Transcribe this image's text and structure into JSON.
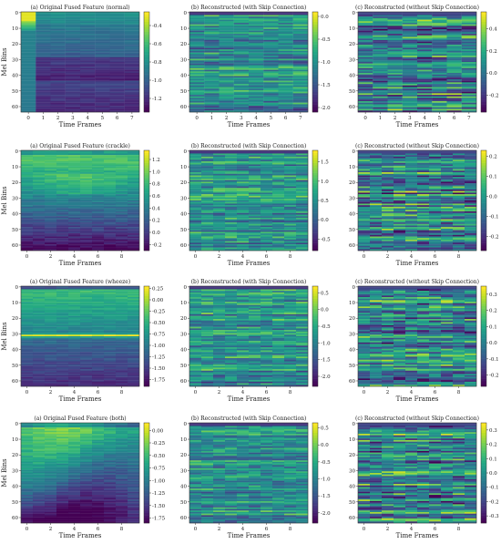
{
  "chart_data": [
    {
      "type": "heatmap",
      "title": "(a) Original Fused Feature (normal)",
      "xlabel": "Time Frames",
      "ylabel": "Mel Bins",
      "xticks": [
        "0",
        "1",
        "2",
        "3",
        "4",
        "5",
        "6",
        "7"
      ],
      "yticks": [
        "0",
        "10",
        "20",
        "30",
        "40",
        "50",
        "60"
      ],
      "cbar_ticks": [
        "-0.4",
        "-0.6",
        "-0.8",
        "-1.0",
        "-1.2"
      ],
      "vmin": -1.35,
      "vmax": -0.25,
      "n_cols": 8,
      "n_rows": 64,
      "pattern": "orig-normal"
    },
    {
      "type": "heatmap",
      "title": "(b) Reconstructed (with Skip Connection)",
      "xlabel": "Time Frames",
      "ylabel": "",
      "xticks": [
        "0",
        "1",
        "2",
        "3",
        "4",
        "5",
        "6",
        "7"
      ],
      "yticks": [
        "0",
        "10",
        "20",
        "30",
        "40",
        "50",
        "60"
      ],
      "cbar_ticks": [
        "0.0",
        "-0.5",
        "-1.0",
        "-1.5",
        "-2.0"
      ],
      "vmin": -2.1,
      "vmax": 0.1,
      "n_cols": 8,
      "n_rows": 64,
      "pattern": "recon-skip"
    },
    {
      "type": "heatmap",
      "title": "(c) Reconstructed (without Skip Connection)",
      "xlabel": "Time Frames",
      "ylabel": "",
      "xticks": [
        "0",
        "1",
        "2",
        "3",
        "4",
        "5",
        "6",
        "7"
      ],
      "yticks": [
        "0",
        "10",
        "20",
        "30",
        "40",
        "50",
        "60"
      ],
      "cbar_ticks": [
        "0.4",
        "0.2",
        "0.0",
        "-0.2"
      ],
      "vmin": -0.35,
      "vmax": 0.55,
      "n_cols": 8,
      "n_rows": 64,
      "pattern": "recon-noskip"
    },
    {
      "type": "heatmap",
      "title": "(a) Original Fused Feature (crackle)",
      "xlabel": "Time Frames",
      "ylabel": "Mel Bins",
      "xticks": [
        "0",
        "2",
        "4",
        "6",
        "8"
      ],
      "yticks": [
        "0",
        "10",
        "20",
        "30",
        "40",
        "50",
        "60"
      ],
      "cbar_ticks": [
        "1.2",
        "1.0",
        "0.8",
        "0.6",
        "0.4",
        "0.2",
        "0.0",
        "-0.2"
      ],
      "vmin": -0.3,
      "vmax": 1.35,
      "n_cols": 10,
      "n_rows": 64,
      "pattern": "orig-crackle"
    },
    {
      "type": "heatmap",
      "title": "(b) Reconstructed (with Skip Connection)",
      "xlabel": "Time Frames",
      "ylabel": "",
      "xticks": [
        "0",
        "2",
        "4",
        "6",
        "8"
      ],
      "yticks": [
        "0",
        "10",
        "20",
        "30",
        "40",
        "50",
        "60"
      ],
      "cbar_ticks": [
        "1.5",
        "1.0",
        "0.5",
        "0.0",
        "-0.5"
      ],
      "vmin": -0.8,
      "vmax": 1.8,
      "n_cols": 10,
      "n_rows": 64,
      "pattern": "recon-skip"
    },
    {
      "type": "heatmap",
      "title": "(c) Reconstructed (without Skip Connection)",
      "xlabel": "Time Frames",
      "ylabel": "",
      "xticks": [
        "0",
        "2",
        "4",
        "6",
        "8"
      ],
      "yticks": [
        "0",
        "10",
        "20",
        "30",
        "40",
        "50",
        "60"
      ],
      "cbar_ticks": [
        "0.2",
        "0.1",
        "0.0",
        "-0.1",
        "-0.2"
      ],
      "vmin": -0.27,
      "vmax": 0.23,
      "n_cols": 10,
      "n_rows": 64,
      "pattern": "recon-noskip"
    },
    {
      "type": "heatmap",
      "title": "(a) Original Fused Feature (wheeze)",
      "xlabel": "Time Frames",
      "ylabel": "Mel Bins",
      "xticks": [
        "0",
        "2",
        "4",
        "6",
        "8"
      ],
      "yticks": [
        "0",
        "10",
        "20",
        "30",
        "40",
        "50",
        "60"
      ],
      "cbar_ticks": [
        "0.25",
        "0.00",
        "-0.25",
        "-0.50",
        "-0.75",
        "-1.00",
        "-1.25",
        "-1.50",
        "-1.75"
      ],
      "vmin": -1.9,
      "vmax": 0.3,
      "n_cols": 10,
      "n_rows": 64,
      "pattern": "orig-wheeze"
    },
    {
      "type": "heatmap",
      "title": "(b) Reconstructed (with Skip Connection)",
      "xlabel": "Time Frames",
      "ylabel": "",
      "xticks": [
        "0",
        "2",
        "4",
        "6",
        "8"
      ],
      "yticks": [
        "0",
        "10",
        "20",
        "30",
        "40",
        "50",
        "60"
      ],
      "cbar_ticks": [
        "0.5",
        "0.0",
        "-0.5",
        "-1.0",
        "-1.5",
        "-2.0"
      ],
      "vmin": -2.3,
      "vmax": 0.7,
      "n_cols": 10,
      "n_rows": 64,
      "pattern": "recon-skip"
    },
    {
      "type": "heatmap",
      "title": "(c) Reconstructed (without Skip Connection)",
      "xlabel": "Time Frames",
      "ylabel": "",
      "xticks": [
        "0",
        "2",
        "4",
        "6",
        "8"
      ],
      "yticks": [
        "0",
        "10",
        "20",
        "30",
        "40",
        "50",
        "60"
      ],
      "cbar_ticks": [
        "0.3",
        "0.2",
        "0.1",
        "0.0",
        "-0.1",
        "-0.2"
      ],
      "vmin": -0.27,
      "vmax": 0.35,
      "n_cols": 10,
      "n_rows": 64,
      "pattern": "recon-noskip"
    },
    {
      "type": "heatmap",
      "title": "(a) Original Fused Feature (both)",
      "xlabel": "Time Frames",
      "ylabel": "Mel Bins",
      "xticks": [
        "0",
        "2",
        "4",
        "6",
        "8"
      ],
      "yticks": [
        "0",
        "10",
        "20",
        "30",
        "40",
        "50",
        "60"
      ],
      "cbar_ticks": [
        "0.00",
        "-0.25",
        "-0.50",
        "-0.75",
        "-1.00",
        "-1.25",
        "-1.50",
        "-1.75"
      ],
      "vmin": -1.85,
      "vmax": 0.15,
      "n_cols": 10,
      "n_rows": 64,
      "pattern": "orig-both"
    },
    {
      "type": "heatmap",
      "title": "(b) Reconstructed (with Skip Connection)",
      "xlabel": "Time Frames",
      "ylabel": "",
      "xticks": [
        "0",
        "2",
        "4",
        "6",
        "8"
      ],
      "yticks": [
        "0",
        "10",
        "20",
        "30",
        "40",
        "50",
        "60"
      ],
      "cbar_ticks": [
        "0.5",
        "0.0",
        "-0.5",
        "-1.0",
        "-1.5",
        "-2.0"
      ],
      "vmin": -2.3,
      "vmax": 0.65,
      "n_cols": 10,
      "n_rows": 64,
      "pattern": "recon-skip"
    },
    {
      "type": "heatmap",
      "title": "(c) Reconstructed (without Skip Connection)",
      "xlabel": "Time Frames",
      "ylabel": "",
      "xticks": [
        "0",
        "2",
        "4",
        "6",
        "8"
      ],
      "yticks": [
        "0",
        "10",
        "20",
        "30",
        "40",
        "50",
        "60"
      ],
      "cbar_ticks": [
        "0.3",
        "0.2",
        "0.1",
        "0.0",
        "-0.1",
        "-0.2",
        "-0.3"
      ],
      "vmin": -0.35,
      "vmax": 0.35,
      "n_cols": 10,
      "n_rows": 64,
      "pattern": "recon-noskip"
    }
  ],
  "colormap": "viridis"
}
